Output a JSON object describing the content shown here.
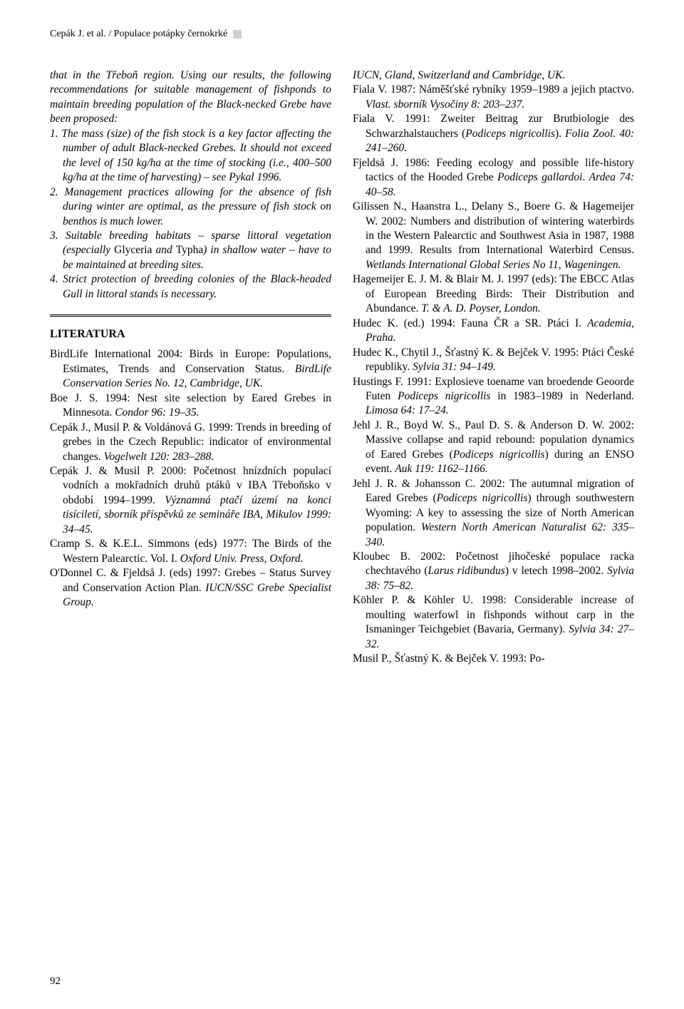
{
  "header": {
    "text": "Cepák J. et al. / Populace potápky černokrké"
  },
  "col1": {
    "intro": "that in the Třeboň region. Using our results, the following recommendations for suitable management of fishponds to maintain breeding population of the Black-necked Grebe have been proposed:",
    "items": {
      "1": "1. The mass (size) of the fish stock is a key factor affecting the number of adult Black-necked Grebes. It should not exceed the level of 150 kg/ha at the time of stocking (i.e., 400–500 kg/ha at the time of harvesting) – see Pykal 1996.",
      "2": "2. Management practices allowing for the absence of fish during winter are optimal, as the pressure of fish stock on benthos is much lower.",
      "3a": "3. Suitable breeding habitats – sparse littoral vegetation (especially ",
      "3b": "Glyceria",
      "3c": " and ",
      "3d": "Typha",
      "3e": ") in shallow water – have to be maintained at breeding sites.",
      "4": "4. Strict protection of breeding colonies of the Black-headed Gull in littoral stands is necessary."
    },
    "lit_title": "LITERATURA",
    "refs": {
      "r1a": "BirdLife International 2004: Birds in Europe: Populations, Estimates, Trends and Conservation Status. ",
      "r1b": "BirdLife Conservation Series No. 12, Cambridge, UK.",
      "r2a": "Boe J. S. 1994: Nest site selection by Eared Grebes in Minnesota. ",
      "r2b": "Condor 96: 19–35.",
      "r3a": "Cepák J., Musil P. & Voldánová G. 1999: Trends in breeding of grebes in the Czech Republic: indicator of environmental changes. ",
      "r3b": "Vogelwelt 120: 283–288.",
      "r4a": "Cepák J. & Musil P. 2000: Početnost hnízdních populací vodních a mokřadních druhů ptáků v IBA Třeboňsko v období 1994–1999. ",
      "r4b": "Významná ptačí území na konci tisíciletí, sborník příspěvků ze semináře IBA, Mikulov 1999: 34–45.",
      "r5a": "Cramp S. & K.E.L. Simmons (eds) 1977: The Birds of the Western Palearctic. Vol. I. ",
      "r5b": "Oxford Univ. Press, Oxford.",
      "r6a": "O'Donnel C. & Fjeldså J. (eds) 1997: Grebes – Status Survey and Conservation Action Plan. ",
      "r6b": "IUCN/SSC Grebe Specialist Group."
    }
  },
  "col2": {
    "refs": {
      "r0": "IUCN, Gland, Switzerland and Cambridge, UK.",
      "r1a": "Fiala V. 1987: Náměšťské rybníky 1959–1989 a jejich ptactvo. ",
      "r1b": "Vlast. sborník Vysočiny 8: 203–237.",
      "r2a": "Fiala V. 1991: Zweiter Beitrag zur Brutbiologie des Schwarzhalstauchers (",
      "r2b": "Podiceps nigricollis",
      "r2c": "). ",
      "r2d": "Folia Zool. 40: 241–260.",
      "r3a": "Fjeldså J. 1986: Feeding ecology and possible life-history tactics of the Hooded Grebe ",
      "r3b": "Podiceps gallardoi",
      "r3c": ". ",
      "r3d": "Ardea 74: 40–58.",
      "r4a": "Gilissen N., Haanstra L., Delany S., Boere G. & Hagemeijer W. 2002: Numbers and distribution of wintering waterbirds in the Western Palearctic and Southwest Asia in 1987, 1988 and 1999. Results from International Waterbird Census. ",
      "r4b": "Wetlands International Global Series No 11, Wageningen.",
      "r5a": "Hagemeijer E. J. M. & Blair M. J. 1997 (eds): The EBCC Atlas of European Breeding Birds: Their Distribution and Abundance. ",
      "r5b": "T. & A. D. Poyser, London.",
      "r6a": "Hudec K. (ed.) 1994: Fauna ČR a SR. Ptáci I. ",
      "r6b": "Academia, Praha.",
      "r7a": "Hudec K., Chytil J., Šťastný K. & Bejček V. 1995: Ptáci České republiky. ",
      "r7b": "Sylvia 31: 94–149.",
      "r8a": "Hustings F. 1991: Explosieve toename van broedende Geoorde Futen ",
      "r8b": "Podiceps nigricollis",
      "r8c": " in 1983–1989 in Nederland. ",
      "r8d": "Limosa 64: 17–24.",
      "r9a": "Jehl J. R., Boyd W. S., Paul D. S. & Anderson D. W. 2002: Massive collapse and rapid rebound: population dynamics of Eared Grebes (",
      "r9b": "Podiceps nigricollis",
      "r9c": ") during an ENSO event. ",
      "r9d": "Auk 119: 1162–1166.",
      "r10a": "Jehl J. R. & Johansson C. 2002: The autumnal migration of Eared Grebes (",
      "r10b": "Podiceps nigricollis",
      "r10c": ") through southwestern Wyoming: A key to assessing the size of North American population. ",
      "r10d": "Western North American Naturalist 62: 335–340.",
      "r11a": "Kloubec B. 2002: Početnost jihočeské populace racka chechtavého (",
      "r11b": "Larus ridibundus",
      "r11c": ") v letech 1998–2002. ",
      "r11d": "Sylvia 38: 75–82.",
      "r12a": "Köhler P. & Köhler U. 1998: Considerable increase of moulting waterfowl in fishponds without carp in the Ismaninger Teichgebiet (Bavaria, Germany). ",
      "r12b": "Sylvia 34: 27–32.",
      "r13": "Musil P., Šťastný K. & Bejček V. 1993: Po-"
    }
  },
  "page_number": "92"
}
